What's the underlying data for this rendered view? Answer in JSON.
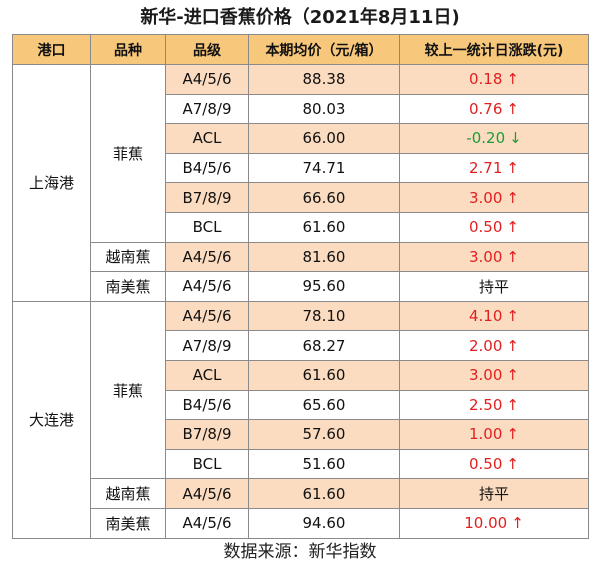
{
  "title": "新华-进口香蕉价格（2021年8月11日)",
  "headers": [
    "港口",
    "品种",
    "品级",
    "本期均价（元/箱）",
    "较上一统计日涨跌(元)"
  ],
  "ports": [
    {
      "name": "上海港",
      "varieties": [
        {
          "name": "菲蕉",
          "rows": [
            {
              "grade": "A4/5/6",
              "price": "88.38",
              "change": "0.18",
              "arrow": "↑",
              "dir": "up"
            },
            {
              "grade": "A7/8/9",
              "price": "80.03",
              "change": "0.76",
              "arrow": "↑",
              "dir": "up"
            },
            {
              "grade": "ACL",
              "price": "66.00",
              "change": "-0.20",
              "arrow": "↓",
              "dir": "down"
            },
            {
              "grade": "B4/5/6",
              "price": "74.71",
              "change": "2.71",
              "arrow": "↑",
              "dir": "up"
            },
            {
              "grade": "B7/8/9",
              "price": "66.60",
              "change": "3.00",
              "arrow": "↑",
              "dir": "up"
            },
            {
              "grade": "BCL",
              "price": "61.60",
              "change": "0.50",
              "arrow": "↑",
              "dir": "up"
            }
          ]
        },
        {
          "name": "越南蕉",
          "rows": [
            {
              "grade": "A4/5/6",
              "price": "81.60",
              "change": "3.00",
              "arrow": "↑",
              "dir": "up"
            }
          ]
        },
        {
          "name": "南美蕉",
          "rows": [
            {
              "grade": "A4/5/6",
              "price": "95.60",
              "change": "持平",
              "arrow": "",
              "dir": "flat"
            }
          ]
        }
      ]
    },
    {
      "name": "大连港",
      "varieties": [
        {
          "name": "菲蕉",
          "rows": [
            {
              "grade": "A4/5/6",
              "price": "78.10",
              "change": "4.10",
              "arrow": "↑",
              "dir": "up"
            },
            {
              "grade": "A7/8/9",
              "price": "68.27",
              "change": "2.00",
              "arrow": "↑",
              "dir": "up"
            },
            {
              "grade": "ACL",
              "price": "61.60",
              "change": "3.00",
              "arrow": "↑",
              "dir": "up"
            },
            {
              "grade": "B4/5/6",
              "price": "65.60",
              "change": "2.50",
              "arrow": "↑",
              "dir": "up"
            },
            {
              "grade": "B7/8/9",
              "price": "57.60",
              "change": "1.00",
              "arrow": "↑",
              "dir": "up"
            },
            {
              "grade": "BCL",
              "price": "51.60",
              "change": "0.50",
              "arrow": "↑",
              "dir": "up"
            }
          ]
        },
        {
          "name": "越南蕉",
          "rows": [
            {
              "grade": "A4/5/6",
              "price": "61.60",
              "change": "持平",
              "arrow": "",
              "dir": "flat"
            }
          ]
        },
        {
          "name": "南美蕉",
          "rows": [
            {
              "grade": "A4/5/6",
              "price": "94.60",
              "change": "10.00",
              "arrow": "↑",
              "dir": "up"
            }
          ]
        }
      ]
    }
  ],
  "colors": {
    "up": "#e02020",
    "down": "#1a9e3a",
    "header_bg": "#f7c77b",
    "row_shade": "#fbdcc0"
  },
  "footer": "数据来源：新华指数"
}
